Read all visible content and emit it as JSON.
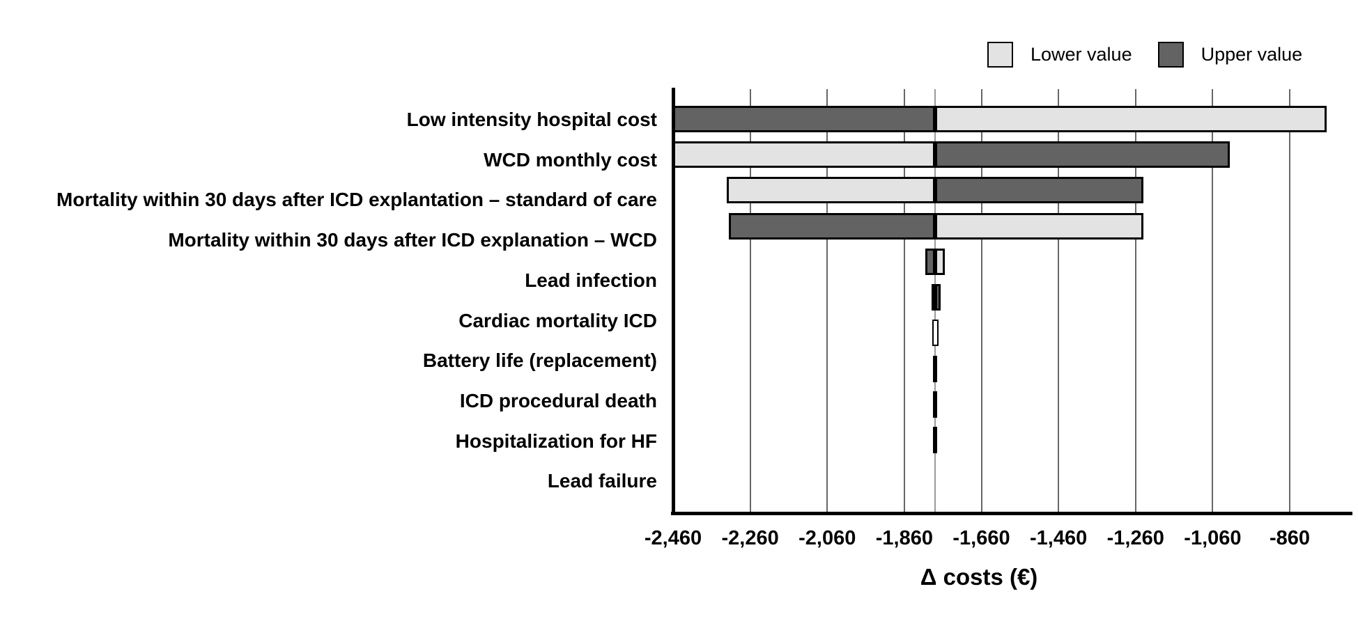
{
  "colors": {
    "lower_fill": "#e3e3e3",
    "upper_fill": "#636363",
    "sliver_black": "#000000",
    "sliver_white": "#ffffff",
    "border": "#000000",
    "gridline": "#666666",
    "pivot_line": "#999999",
    "background": "#ffffff",
    "text": "#000000"
  },
  "legend": {
    "items": [
      {
        "label": "Lower value",
        "color": "#e3e3e3"
      },
      {
        "label": "Upper value",
        "color": "#636363"
      }
    ]
  },
  "chart_data": {
    "type": "bar",
    "subtype": "tornado",
    "orientation": "horizontal",
    "title": "",
    "xlabel": "Δ costs (€)",
    "ylabel": "",
    "base_value": -1780,
    "xlim": [
      -2460,
      -700
    ],
    "xticks": [
      -2460,
      -2260,
      -2060,
      -1860,
      -1660,
      -1460,
      -1260,
      -1060,
      -860
    ],
    "xtick_labels": [
      "-2,460",
      "-2,260",
      "-2,060",
      "-1,860",
      "-1,660",
      "-1,460",
      "-1,260",
      "-1,060",
      "-860"
    ],
    "grid": true,
    "legend_position": "top-right",
    "legend_entries": [
      "Lower value",
      "Upper value"
    ],
    "categories": [
      "Low intensity hospital cost",
      "WCD monthly cost",
      "Mortality within 30 days after ICD explantation – standard of care",
      "Mortality within 30 days after ICD explanation – WCD",
      "Lead infection",
      "Cardiac mortality ICD",
      "Battery life (replacement)",
      "ICD procedural death",
      "Hospitalization for HF",
      "Lead failure"
    ],
    "bars": [
      {
        "label": "Low intensity hospital cost",
        "lower_end": -765,
        "upper_end": -2460,
        "style": "split"
      },
      {
        "label": "WCD monthly cost",
        "lower_end": -2460,
        "upper_end": -1015,
        "style": "split"
      },
      {
        "label": "Mortality within 30 days after ICD explantation – standard of care",
        "lower_end": -2320,
        "upper_end": -1240,
        "style": "split"
      },
      {
        "label": "Mortality within 30 days after ICD explanation – WCD",
        "lower_end": -1240,
        "upper_end": -2315,
        "style": "split"
      },
      {
        "label": "Lead infection",
        "lower_end": -1755,
        "upper_end": -1805,
        "style": "split"
      },
      {
        "label": "Cardiac mortality ICD",
        "lower_end": -1790,
        "upper_end": -1765,
        "style": "split"
      },
      {
        "label": "Battery life (replacement)",
        "lower_end": -1788,
        "upper_end": -1772,
        "style": "white"
      },
      {
        "label": "ICD procedural death",
        "lower_end": -1786,
        "upper_end": -1774,
        "style": "black"
      },
      {
        "label": "Hospitalization for HF",
        "lower_end": -1786,
        "upper_end": -1774,
        "style": "black"
      },
      {
        "label": "Lead failure",
        "lower_end": -1786,
        "upper_end": -1774,
        "style": "black"
      }
    ]
  }
}
